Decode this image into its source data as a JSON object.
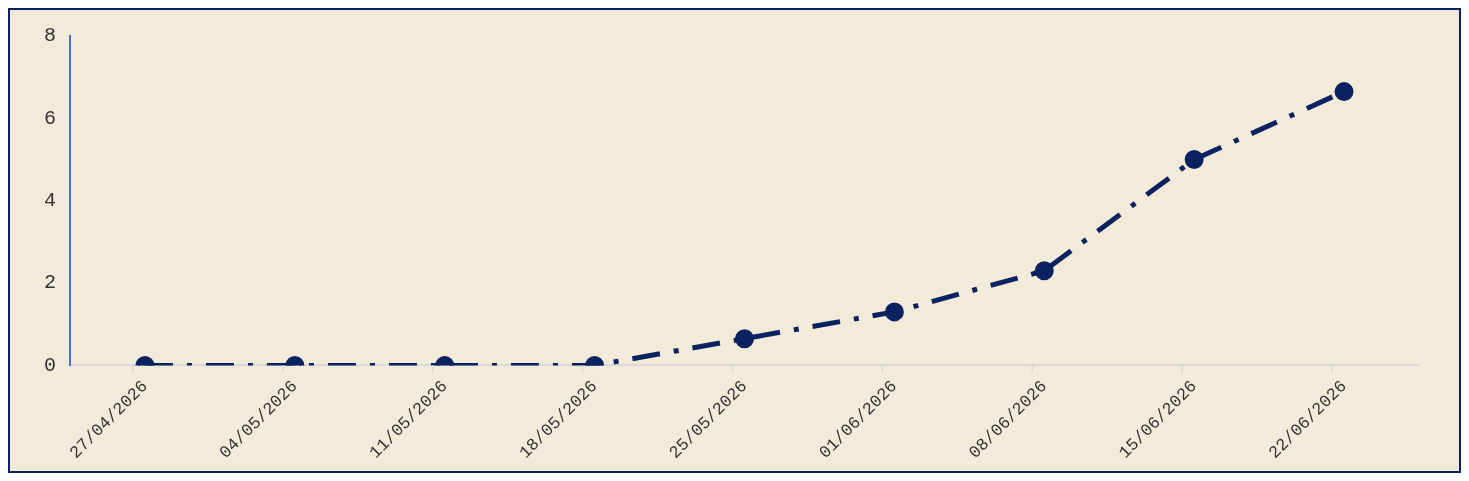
{
  "chart_data": {
    "type": "line",
    "categories": [
      "27/04/2026",
      "04/05/2026",
      "11/05/2026",
      "18/05/2026",
      "25/05/2026",
      "01/06/2026",
      "08/06/2026",
      "15/06/2026",
      "22/06/2026"
    ],
    "series": [
      {
        "color": "#0b2260",
        "values": [
          0,
          0,
          0,
          0,
          0.65,
          1.3,
          2.3,
          5,
          6.65
        ]
      }
    ],
    "ylim": [
      0,
      8
    ],
    "yticks": [
      0,
      2,
      4,
      6,
      8
    ],
    "grid": false,
    "legend": false,
    "marker": "circle",
    "line_style": "dashed"
  }
}
